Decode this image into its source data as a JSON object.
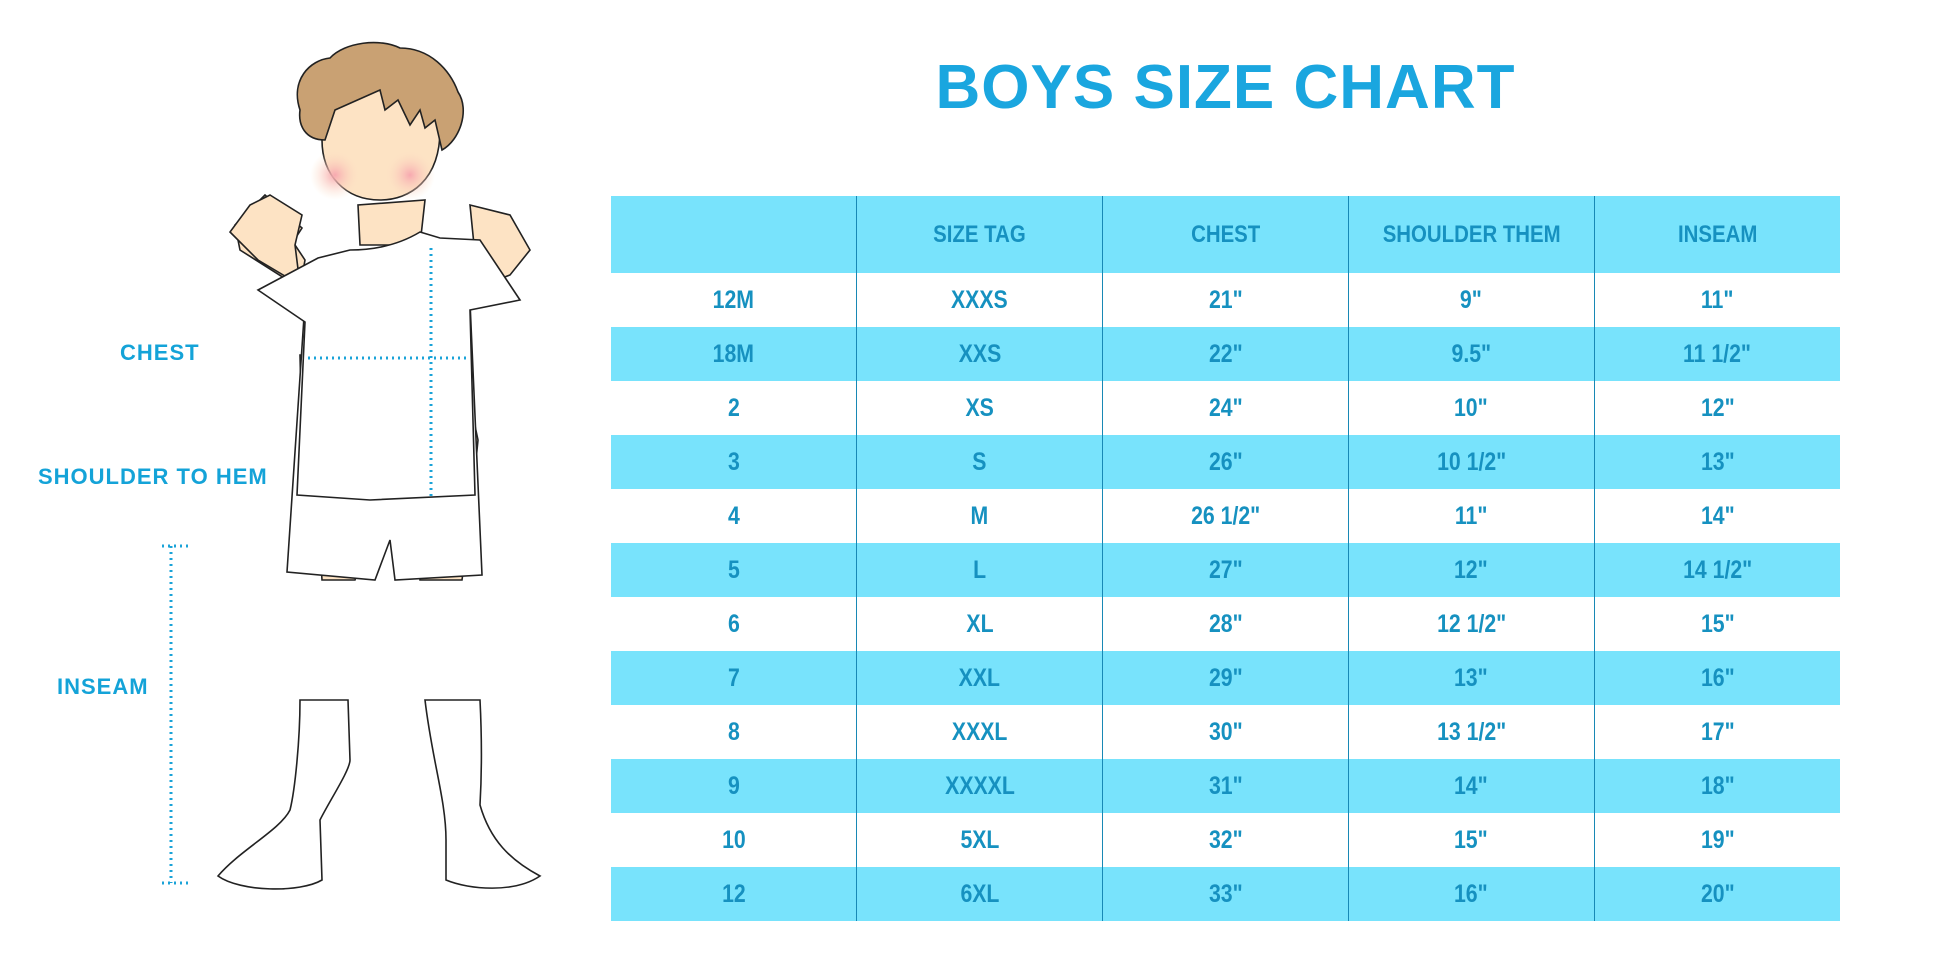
{
  "title": "BOYS SIZE CHART",
  "figure_labels": {
    "chest": "CHEST",
    "shoulder": "SHOULDER TO HEM",
    "inseam": "INSEAM"
  },
  "colors": {
    "accent": "#1aa6df",
    "row_fill": "#78e3fc",
    "text": "#1691c0"
  },
  "table": {
    "headers": [
      "",
      "SIZE TAG",
      "CHEST",
      "SHOULDER THEM",
      "INSEAM"
    ],
    "rows": [
      [
        "12M",
        "XXXS",
        "21\"",
        "9\"",
        "11\""
      ],
      [
        "18M",
        "XXS",
        "22\"",
        "9.5\"",
        "11 1/2\""
      ],
      [
        "2",
        "XS",
        "24\"",
        "10\"",
        "12\""
      ],
      [
        "3",
        "S",
        "26\"",
        "10 1/2\"",
        "13\""
      ],
      [
        "4",
        "M",
        "26 1/2\"",
        "11\"",
        "14\""
      ],
      [
        "5",
        "L",
        "27\"",
        "12\"",
        "14 1/2\""
      ],
      [
        "6",
        "XL",
        "28\"",
        "12 1/2\"",
        "15\""
      ],
      [
        "7",
        "XXL",
        "29\"",
        "13\"",
        "16\""
      ],
      [
        "8",
        "XXXL",
        "30\"",
        "13 1/2\"",
        "17\""
      ],
      [
        "9",
        "XXXXL",
        "31\"",
        "14\"",
        "18\""
      ],
      [
        "10",
        "5XL",
        "32\"",
        "15\"",
        "19\""
      ],
      [
        "12",
        "6XL",
        "33\"",
        "16\"",
        "20\""
      ]
    ]
  }
}
